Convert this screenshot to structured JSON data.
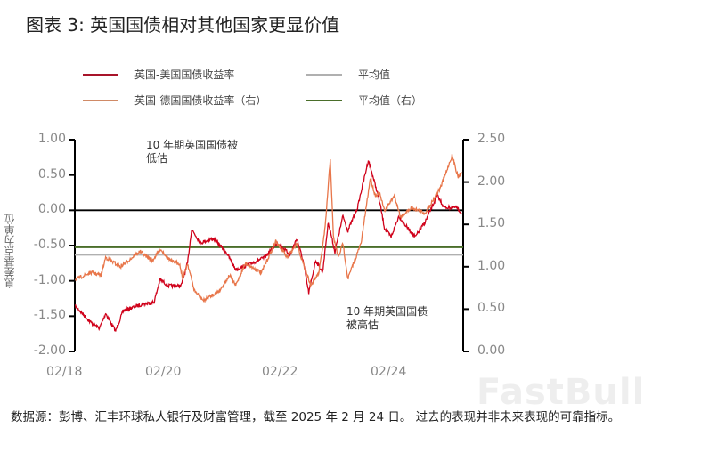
{
  "title": "图表 3:  英国国债相对其他国家更显价值",
  "footer": "数据源：彭博、汇丰环球私人银行及财富管理，截至 2025 年 2 月 24 日。 过去的表现并非未来表现的可靠指标。",
  "watermark": "FastBull",
  "chart_data": {
    "type": "line",
    "title": "图表 3:  英国国债相对其他国家更显价值",
    "ylabel": "息差基点为单位",
    "ylim": [
      -2.0,
      1.0
    ],
    "y2lim": [
      0.0,
      2.5
    ],
    "yticks": [
      "1.00",
      "0.50",
      "0.00",
      "-0.50",
      "-1.00",
      "-1.50",
      "-2.00"
    ],
    "y2ticks": [
      "2.50",
      "2.00",
      "1.50",
      "1.00",
      "0.50",
      "0.00"
    ],
    "xticks": [
      "02/18",
      "02/20",
      "02/22",
      "02/24"
    ],
    "xlim": [
      "2018-02-01",
      "2025-02-24"
    ],
    "grid": false,
    "legend_position": "top",
    "annotations": {
      "undervalued": "10 年期英国国债被\n低估",
      "overvalued": "10 年期英国国债\n被高估"
    },
    "series": [
      {
        "name": "英国-美国国债收益率",
        "axis": "left",
        "color": "#d0021b",
        "x": [
          "2018-02-05",
          "2018-05-20",
          "2018-07-15",
          "2018-08-25",
          "2018-10-30",
          "2018-12-20",
          "2019-04-10",
          "2019-07-12",
          "2019-08-22",
          "2019-10-15",
          "2020-01-08",
          "2020-02-20",
          "2020-03-18",
          "2020-05-15",
          "2020-08-10",
          "2020-11-02",
          "2021-01-05",
          "2021-03-10",
          "2021-04-20",
          "2021-07-15",
          "2021-10-08",
          "2022-01-01",
          "2022-02-15",
          "2022-03-28",
          "2022-05-05",
          "2022-06-20",
          "2022-08-05",
          "2022-09-12",
          "2022-10-26",
          "2022-12-18",
          "2023-01-20",
          "2023-03-25",
          "2023-06-05",
          "2023-07-08",
          "2023-08-18",
          "2023-09-20",
          "2023-11-03",
          "2023-12-25",
          "2024-02-05",
          "2024-04-12",
          "2024-06-15",
          "2024-09-05",
          "2024-10-20",
          "2025-01-10",
          "2025-02-14"
        ],
        "y": [
          -1.36,
          -1.59,
          -1.67,
          -1.46,
          -1.71,
          -1.42,
          -1.34,
          -1.3,
          -0.98,
          -1.07,
          -1.07,
          -0.75,
          -0.27,
          -0.46,
          -0.4,
          -0.59,
          -0.84,
          -0.79,
          -0.75,
          -0.67,
          -0.46,
          -0.63,
          -0.4,
          -0.71,
          -1.17,
          -0.71,
          -0.88,
          -0.17,
          -0.59,
          -0.08,
          -0.29,
          0.04,
          0.71,
          0.46,
          0.13,
          -0.25,
          -0.38,
          -0.08,
          -0.21,
          -0.38,
          -0.17,
          0.21,
          0.04,
          0.04,
          -0.04
        ]
      },
      {
        "name": "英国-德国国债收益率（右）",
        "axis": "right",
        "color": "#e8764a",
        "x": [
          "2018-02-05",
          "2018-05-20",
          "2018-07-25",
          "2018-08-25",
          "2018-12-01",
          "2019-04-10",
          "2019-07-01",
          "2019-08-22",
          "2019-11-05",
          "2019-12-28",
          "2020-01-20",
          "2020-02-20",
          "2020-04-05",
          "2020-06-05",
          "2020-09-20",
          "2020-11-25",
          "2021-01-05",
          "2021-03-10",
          "2021-06-25",
          "2021-09-28",
          "2021-12-15",
          "2022-02-15",
          "2022-03-28",
          "2022-05-20",
          "2022-07-12",
          "2022-08-22",
          "2022-09-25",
          "2022-10-16",
          "2022-11-18",
          "2022-12-18",
          "2023-01-20",
          "2023-03-05",
          "2023-04-18",
          "2023-06-18",
          "2023-07-20",
          "2023-08-18",
          "2023-09-20",
          "2023-11-25",
          "2024-01-05",
          "2024-03-20",
          "2024-06-15",
          "2024-09-28",
          "2024-12-12",
          "2025-01-22",
          "2025-02-14"
        ],
        "y": [
          0.85,
          0.93,
          0.9,
          1.11,
          1.0,
          1.18,
          1.07,
          1.21,
          1.06,
          1.04,
          0.86,
          1.04,
          0.72,
          0.6,
          0.72,
          0.9,
          0.78,
          1.04,
          0.93,
          1.3,
          1.11,
          1.28,
          1.04,
          0.78,
          0.93,
          1.46,
          2.27,
          1.35,
          1.11,
          1.28,
          0.86,
          1.07,
          1.28,
          2.05,
          1.84,
          1.87,
          1.66,
          1.84,
          1.59,
          1.7,
          1.63,
          1.94,
          2.31,
          2.06,
          2.12
        ]
      },
      {
        "name": "平均值",
        "axis": "left",
        "color": "#b0b0b0",
        "constant": -0.63
      },
      {
        "name": "平均值（右）",
        "axis": "right",
        "color": "#4a6e2a",
        "constant": 1.23
      }
    ]
  }
}
